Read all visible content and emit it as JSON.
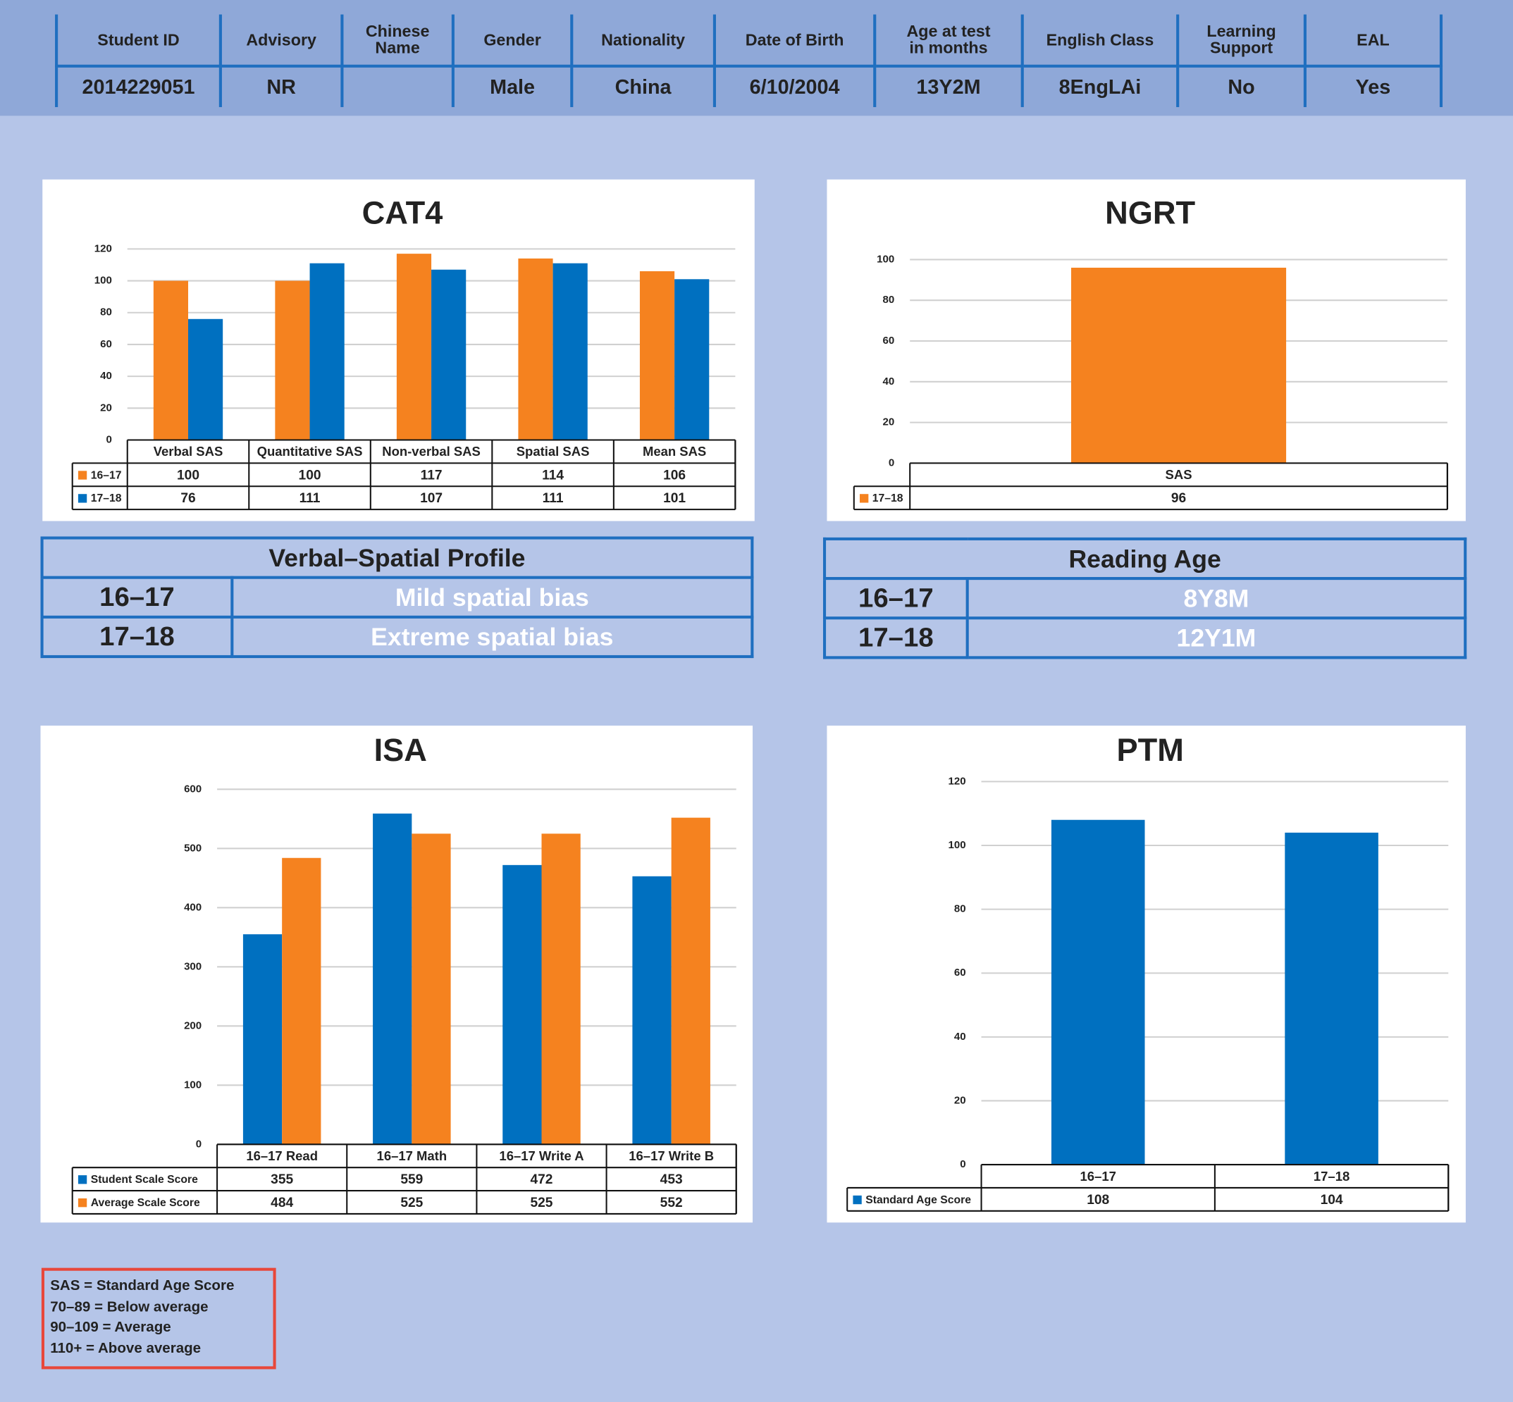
{
  "header": {
    "columns": [
      "Student ID",
      "Advisory",
      "Chinese Name",
      "Gender",
      "Nationality",
      "Date of Birth",
      "Age at test in months",
      "English Class",
      "Learning Support",
      "EAL"
    ],
    "values": [
      "2014229051",
      "NR",
      null,
      "Male",
      "China",
      "6/10/2004",
      "13Y2M",
      "8EngLAi",
      "No",
      "Yes"
    ]
  },
  "chart_data": [
    {
      "type": "bar",
      "title": "CAT4",
      "categories": [
        "Verbal SAS",
        "Quantitative SAS",
        "Non-verbal SAS",
        "Spatial SAS",
        "Mean SAS"
      ],
      "series": [
        {
          "name": "16–17",
          "color": "#f5821f",
          "values": [
            100,
            100,
            117,
            114,
            106
          ]
        },
        {
          "name": "17–18",
          "color": "#0070c0",
          "values": [
            76,
            111,
            107,
            111,
            101
          ]
        }
      ],
      "ylim": [
        0,
        120
      ],
      "yticks": [
        0,
        20,
        40,
        60,
        80,
        100,
        120
      ],
      "grid": true
    },
    {
      "type": "bar",
      "title": "NGRT",
      "categories": [
        "SAS"
      ],
      "series": [
        {
          "name": "17–18",
          "color": "#f5821f",
          "values": [
            96
          ]
        }
      ],
      "ylim": [
        0,
        100
      ],
      "yticks": [
        0,
        20,
        40,
        60,
        80,
        100
      ],
      "grid": true
    },
    {
      "type": "bar",
      "title": "ISA",
      "categories": [
        "16–17 Read",
        "16–17 Math",
        "16–17 Write A",
        "16–17 Write B"
      ],
      "series": [
        {
          "name": "Student Scale Score",
          "color": "#0070c0",
          "values": [
            355,
            559,
            472,
            453
          ]
        },
        {
          "name": "Average Scale Score",
          "color": "#f5821f",
          "values": [
            484,
            525,
            525,
            552
          ]
        }
      ],
      "ylim": [
        0,
        600
      ],
      "yticks": [
        0,
        100,
        200,
        300,
        400,
        500,
        600
      ],
      "grid": true
    },
    {
      "type": "bar",
      "title": "PTM",
      "categories": [
        "16–17",
        "17–18"
      ],
      "series": [
        {
          "name": "Standard Age Score",
          "color": "#0070c0",
          "values": [
            108,
            104
          ]
        }
      ],
      "ylim": [
        0,
        120
      ],
      "yticks": [
        0,
        20,
        40,
        60,
        80,
        100,
        120
      ],
      "grid": true
    }
  ],
  "profile": {
    "title": "Verbal–Spatial Profile",
    "rows": [
      [
        "16–17",
        "Mild spatial bias"
      ],
      [
        "17–18",
        "Extreme spatial bias"
      ]
    ]
  },
  "reading_age": {
    "title": "Reading Age",
    "rows": [
      [
        "16–17",
        "8Y8M"
      ],
      [
        "17–18",
        "12Y1M"
      ]
    ]
  },
  "key": [
    "SAS = Standard Age Score",
    "70–89 = Below average",
    "90–109 = Average",
    "110+ = Above average"
  ]
}
